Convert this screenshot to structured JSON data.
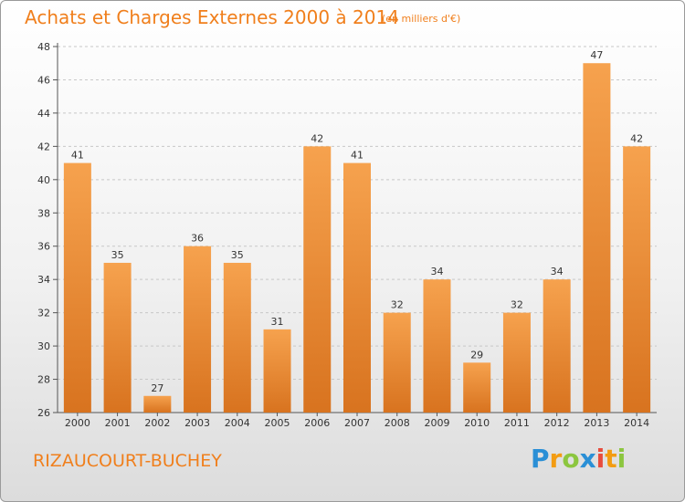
{
  "title": "Achats et Charges Externes 2000 à 2014",
  "subtitle": "(en milliers d'€)",
  "place": "RIZAUCOURT-BUCHEY",
  "brand": {
    "letters": [
      "P",
      "r",
      "o",
      "x",
      "i",
      "t",
      "i"
    ],
    "colors": [
      "#2a8fd6",
      "#f39c12",
      "#8cc63f",
      "#2a8fd6",
      "#e84c3d",
      "#f39c12",
      "#8cc63f"
    ]
  },
  "chart_data": {
    "type": "bar",
    "categories": [
      "2000",
      "2001",
      "2002",
      "2003",
      "2004",
      "2005",
      "2006",
      "2007",
      "2008",
      "2009",
      "2010",
      "2011",
      "2012",
      "2013",
      "2014"
    ],
    "values": [
      41,
      35,
      27,
      36,
      35,
      31,
      42,
      41,
      32,
      34,
      29,
      32,
      34,
      47,
      42
    ],
    "ylim": [
      26,
      48
    ],
    "yticks": [
      26,
      28,
      30,
      32,
      34,
      36,
      38,
      40,
      42,
      44,
      46,
      48
    ],
    "grid": "horizontal dashed",
    "bar_color": "#f39a3e"
  }
}
